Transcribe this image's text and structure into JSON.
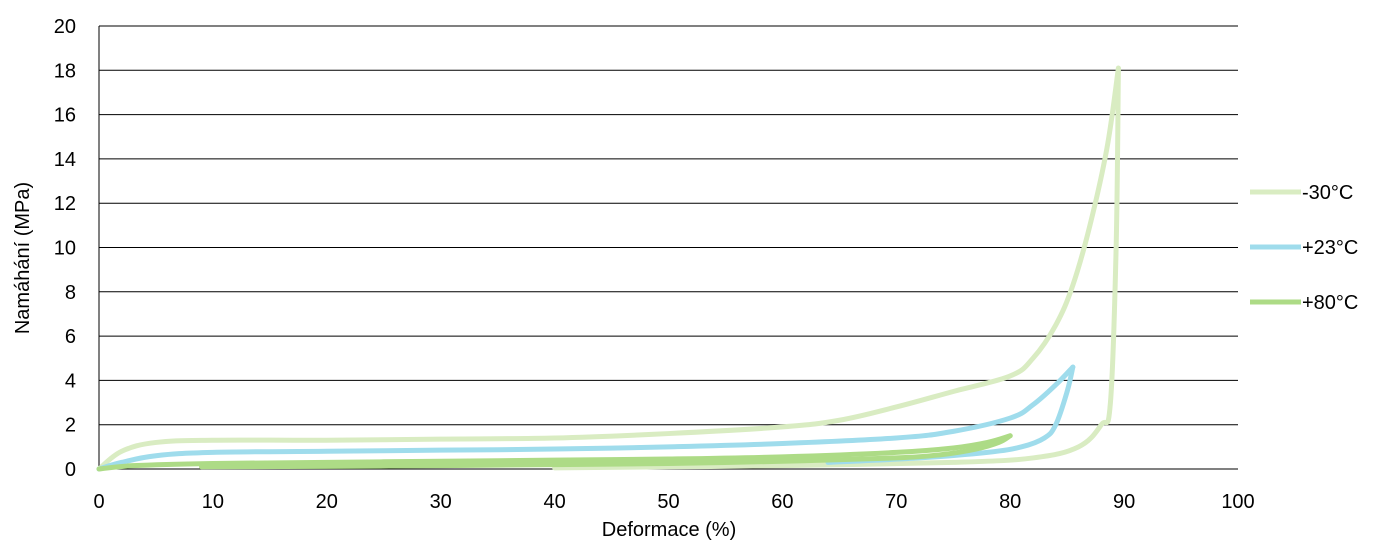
{
  "chart_data": {
    "type": "line",
    "title": "",
    "xlabel": "Deformace (%)",
    "ylabel": "Namáhání (MPa)",
    "xlim": [
      0,
      100
    ],
    "ylim": [
      0,
      20
    ],
    "xticks": [
      0,
      10,
      20,
      30,
      40,
      50,
      60,
      70,
      80,
      90,
      100
    ],
    "yticks": [
      0,
      2,
      4,
      6,
      8,
      10,
      12,
      14,
      16,
      18,
      20
    ],
    "grid": "horizontal",
    "legend_position": "right",
    "series": [
      {
        "name": "-30°C",
        "color": "#d9ecc2",
        "loading": [
          [
            0,
            0
          ],
          [
            2,
            0.8
          ],
          [
            5,
            1.2
          ],
          [
            10,
            1.3
          ],
          [
            20,
            1.3
          ],
          [
            30,
            1.35
          ],
          [
            40,
            1.4
          ],
          [
            50,
            1.6
          ],
          [
            60,
            1.9
          ],
          [
            65,
            2.2
          ],
          [
            70,
            2.8
          ],
          [
            75,
            3.5
          ],
          [
            80,
            4.2
          ],
          [
            82,
            5.0
          ],
          [
            84,
            6.5
          ],
          [
            85.5,
            8.3
          ],
          [
            87,
            11
          ],
          [
            88.5,
            14.5
          ],
          [
            89.5,
            18.1
          ]
        ],
        "unloading": [
          [
            89.5,
            18.1
          ],
          [
            89.3,
            10
          ],
          [
            88.8,
            3
          ],
          [
            88,
            2
          ],
          [
            86,
            1
          ],
          [
            82,
            0.5
          ],
          [
            75,
            0.3
          ],
          [
            60,
            0.15
          ],
          [
            50,
            0.1
          ],
          [
            40,
            0.05
          ]
        ]
      },
      {
        "name": "+23°C",
        "color": "#9fdcec",
        "loading": [
          [
            0,
            0
          ],
          [
            2,
            0.3
          ],
          [
            5,
            0.6
          ],
          [
            10,
            0.75
          ],
          [
            20,
            0.8
          ],
          [
            30,
            0.85
          ],
          [
            40,
            0.9
          ],
          [
            50,
            1.0
          ],
          [
            60,
            1.15
          ],
          [
            70,
            1.4
          ],
          [
            75,
            1.7
          ],
          [
            80,
            2.3
          ],
          [
            82,
            2.9
          ],
          [
            84,
            3.8
          ],
          [
            85.5,
            4.6
          ]
        ],
        "unloading": [
          [
            85.5,
            4.6
          ],
          [
            85,
            3.5
          ],
          [
            84,
            2.0
          ],
          [
            83,
            1.4
          ],
          [
            81,
            1.0
          ],
          [
            78,
            0.75
          ],
          [
            72,
            0.5
          ],
          [
            64,
            0.3
          ]
        ]
      },
      {
        "name": "+80°C",
        "color": "#addb86",
        "loading": [
          [
            0,
            0
          ],
          [
            3,
            0.15
          ],
          [
            10,
            0.25
          ],
          [
            20,
            0.3
          ],
          [
            30,
            0.35
          ],
          [
            40,
            0.4
          ],
          [
            50,
            0.45
          ],
          [
            60,
            0.55
          ],
          [
            70,
            0.75
          ],
          [
            75,
            0.95
          ],
          [
            78,
            1.2
          ],
          [
            80,
            1.5
          ]
        ],
        "unloading": [
          [
            80,
            1.5
          ],
          [
            79,
            1.2
          ],
          [
            77,
            0.9
          ],
          [
            74,
            0.65
          ],
          [
            70,
            0.5
          ],
          [
            60,
            0.35
          ],
          [
            50,
            0.25
          ],
          [
            40,
            0.2
          ],
          [
            30,
            0.15
          ],
          [
            20,
            0.12
          ],
          [
            9,
            0.1
          ]
        ]
      }
    ]
  }
}
